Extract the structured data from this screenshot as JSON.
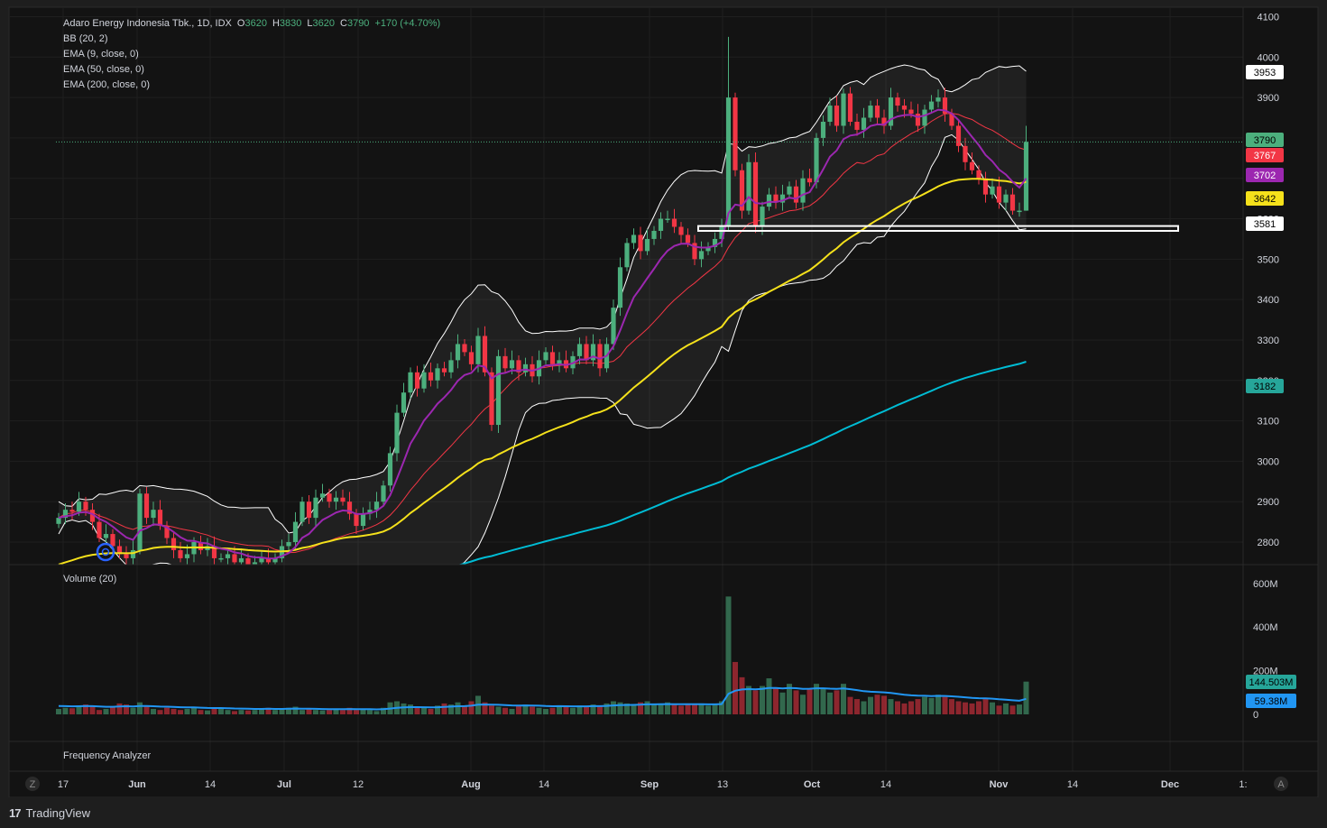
{
  "header": {
    "symbol": "Adaro Energy Indonesia Tbk., 1D, IDX",
    "open_label": "O",
    "open": "3620",
    "high_label": "H",
    "high": "3830",
    "low_label": "L",
    "low": "3620",
    "close_label": "C",
    "close": "3790",
    "change": "+170 (+4.70%)"
  },
  "indicators": [
    "BB (20, 2)",
    "EMA (9, close, 0)",
    "EMA (50, close, 0)",
    "EMA (200, close, 0)"
  ],
  "volume_pane": {
    "title": "Volume (20)"
  },
  "analyzer_pane": {
    "title": "Frequency Analyzer"
  },
  "price_badges": [
    {
      "text": "3953",
      "value": 3953,
      "bg": "#ffffff",
      "fg": "#000000"
    },
    {
      "text": "3790",
      "value": 3790,
      "bg": "#4caf7d",
      "fg": "#000000"
    },
    {
      "text": "3767",
      "value": 3767,
      "bg": "#f23645",
      "fg": "#ffffff"
    },
    {
      "text": "3702",
      "value": 3702,
      "bg": "#9c27b0",
      "fg": "#ffffff"
    },
    {
      "text": "3642",
      "value": 3642,
      "bg": "#f5e11b",
      "fg": "#000000"
    },
    {
      "text": "3581",
      "value": 3581,
      "bg": "#ffffff",
      "fg": "#000000"
    },
    {
      "text": "3182",
      "value": 3182,
      "bg": "#26a69a",
      "fg": "#000000"
    }
  ],
  "volume_badges": [
    {
      "text": "144.503M",
      "value": 144.503,
      "bg": "#26a69a",
      "fg": "#000000"
    },
    {
      "text": "59.38M",
      "value": 59.38,
      "bg": "#2196f3",
      "fg": "#000000"
    }
  ],
  "time_axis": [
    "Z",
    "17",
    "Jun",
    "14",
    "Jul",
    "12",
    "Aug",
    "14",
    "Sep",
    "13",
    "Oct",
    "14",
    "Nov",
    "14",
    "Dec",
    "1:",
    "A"
  ],
  "footer": {
    "brand": "TradingView",
    "logo": "17"
  },
  "colors": {
    "up": "#4caf7d",
    "down": "#f23645",
    "bb": "#ffffff",
    "ema9": "#9c27b0",
    "ema50": "#f5e11b",
    "ema200": "#00bcd4",
    "bb_mid": "#f23645",
    "vol_ma": "#2196f3"
  },
  "chart_data": {
    "type": "candlestick",
    "title": "Adaro Energy Indonesia Tbk., 1D, IDX",
    "y_ticks": [
      2800,
      2900,
      3000,
      3100,
      3200,
      3300,
      3400,
      3500,
      3600,
      3700,
      3800,
      3900,
      4000,
      4100
    ],
    "ylim": [
      2740,
      4110
    ],
    "volume_ticks": [
      {
        "v": 0,
        "t": "0"
      },
      {
        "v": 200,
        "t": "200M"
      },
      {
        "v": 400,
        "t": "400M"
      },
      {
        "v": 600,
        "t": "600M"
      }
    ],
    "volume_ylim": [
      0,
      620
    ],
    "support_zone": [
      3570,
      3582
    ],
    "close": [
      2860,
      2880,
      2875,
      2900,
      2880,
      2850,
      2810,
      2820,
      2790,
      2770,
      2760,
      2780,
      2920,
      2860,
      2880,
      2840,
      2810,
      2780,
      2760,
      2770,
      2800,
      2780,
      2790,
      2760,
      2760,
      2770,
      2750,
      2760,
      2740,
      2750,
      2760,
      2750,
      2760,
      2790,
      2800,
      2850,
      2900,
      2860,
      2910,
      2920,
      2900,
      2910,
      2900,
      2870,
      2840,
      2870,
      2880,
      2900,
      2940,
      3020,
      3120,
      3170,
      3220,
      3180,
      3220,
      3200,
      3230,
      3220,
      3250,
      3290,
      3270,
      3240,
      3310,
      3220,
      3090,
      3260,
      3230,
      3250,
      3220,
      3240,
      3210,
      3250,
      3270,
      3240,
      3250,
      3230,
      3260,
      3290,
      3250,
      3290,
      3230,
      3290,
      3380,
      3480,
      3540,
      3560,
      3520,
      3550,
      3570,
      3600,
      3600,
      3580,
      3560,
      3540,
      3500,
      3520,
      3530,
      3550,
      3580,
      3900,
      3720,
      3620,
      3740,
      3580,
      3630,
      3660,
      3640,
      3660,
      3680,
      3640,
      3700,
      3690,
      3800,
      3840,
      3880,
      3830,
      3910,
      3840,
      3820,
      3850,
      3880,
      3850,
      3830,
      3900,
      3880,
      3870,
      3860,
      3830,
      3870,
      3890,
      3900,
      3860,
      3830,
      3780,
      3740,
      3720,
      3700,
      3660,
      3680,
      3640,
      3660,
      3620,
      3620,
      3790
    ],
    "volume": [
      25,
      30,
      28,
      40,
      45,
      35,
      20,
      25,
      35,
      50,
      45,
      30,
      55,
      40,
      25,
      20,
      30,
      25,
      20,
      25,
      30,
      20,
      18,
      25,
      30,
      20,
      15,
      20,
      18,
      20,
      25,
      30,
      20,
      25,
      30,
      35,
      20,
      25,
      20,
      18,
      20,
      25,
      20,
      30,
      20,
      25,
      20,
      15,
      30,
      55,
      60,
      50,
      45,
      35,
      30,
      25,
      40,
      50,
      45,
      55,
      40,
      60,
      85,
      55,
      40,
      35,
      30,
      25,
      40,
      45,
      35,
      30,
      25,
      30,
      40,
      35,
      30,
      40,
      35,
      45,
      40,
      50,
      60,
      55,
      50,
      45,
      55,
      60,
      45,
      50,
      55,
      45,
      40,
      50,
      45,
      50,
      40,
      45,
      60,
      540,
      240,
      170,
      130,
      110,
      130,
      165,
      120,
      100,
      140,
      110,
      90,
      120,
      140,
      120,
      100,
      110,
      140,
      80,
      70,
      60,
      80,
      90,
      85,
      70,
      60,
      50,
      60,
      70,
      80,
      75,
      90,
      80,
      70,
      60,
      55,
      50,
      60,
      70,
      55,
      40,
      50,
      40,
      45,
      150
    ],
    "series": [
      {
        "name": "BB (20, 2)"
      },
      {
        "name": "EMA (9, close, 0)"
      },
      {
        "name": "EMA (50, close, 0)"
      },
      {
        "name": "EMA (200, close, 0)"
      },
      {
        "name": "Volume (20)"
      }
    ]
  }
}
